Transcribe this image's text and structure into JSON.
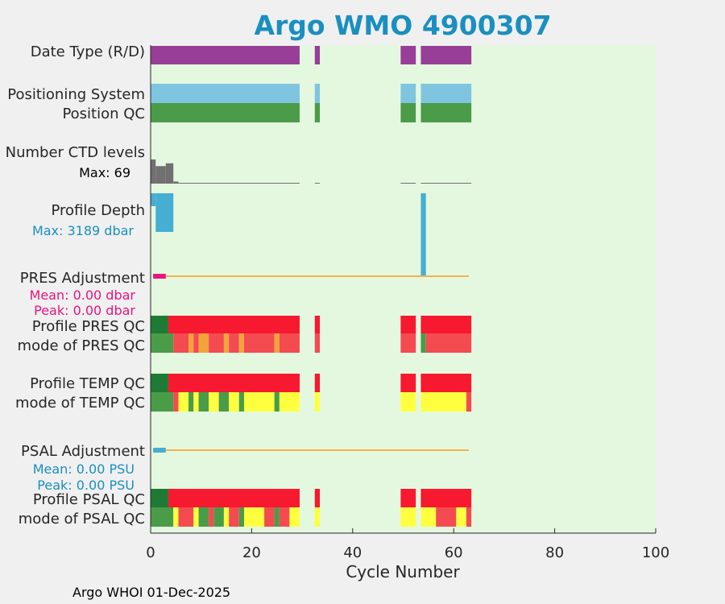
{
  "chart_data": {
    "type": "bar",
    "title": "Argo WMO 4900307",
    "xlabel": "Cycle Number",
    "xlim": [
      0,
      100
    ],
    "xticks": [
      0,
      20,
      40,
      60,
      80,
      100
    ],
    "footer": "Argo WHOI 01-Dec-2025",
    "row_labels": {
      "date_type": "Date Type (R/D)",
      "positioning_system": "Positioning System",
      "position_qc": "Position QC",
      "number_ctd_levels": "Number CTD levels",
      "profile_depth": "Profile Depth",
      "pres_adjustment": "PRES Adjustment",
      "profile_pres_qc": "Profile PRES QC",
      "mode_pres_qc": "mode of PRES QC",
      "profile_temp_qc": "Profile TEMP QC",
      "mode_temp_qc": "mode of TEMP QC",
      "psal_adjustment": "PSAL Adjustment",
      "profile_psal_qc": "Profile PSAL QC",
      "mode_psal_qc": "mode of PSAL QC"
    },
    "annotations": {
      "ctd_max": "Max: 69",
      "depth_max": "Max: 3189 dbar",
      "pres_mean": "Mean: 0.00 dbar",
      "pres_peak": "Peak: 0.00 dbar",
      "psal_mean": "Mean: 0.00 PSU",
      "psal_peak": "Peak: 0.00 PSU"
    },
    "stats": {
      "ctd_levels_max": 69,
      "profile_depth_max_dbar": 3189,
      "pres_adjustment_mean_dbar": 0.0,
      "pres_adjustment_peak_dbar": 0.0,
      "psal_adjustment_mean_psu": 0.0,
      "psal_adjustment_peak_psu": 0.0
    },
    "colors": {
      "background": "#e4f8e0",
      "date_type": "#983d98",
      "positioning": "#7fc5df",
      "qc_good": "#4a9c48",
      "qc_dark_good": "#1e7a34",
      "qc_bad": "#f6192f",
      "qc_probably_bad": "#f44b50",
      "qc_probably_good": "#ffff40",
      "qc_changed": "#f3a33c",
      "ctd": "#707070",
      "depth": "#46aed2",
      "pres_adj": "#e8157e",
      "psal_adj": "#46aed2",
      "adj_line": "#f3b34a"
    },
    "tracks": {
      "date_type": [
        {
          "from": 0,
          "to": 29.5,
          "color": "date_type"
        },
        {
          "from": 32.5,
          "to": 33.5,
          "color": "date_type"
        },
        {
          "from": 49.5,
          "to": 52.5,
          "color": "date_type"
        },
        {
          "from": 53.5,
          "to": 63.5,
          "color": "date_type"
        }
      ],
      "positioning_system": [
        {
          "from": 0,
          "to": 29.5,
          "color": "positioning"
        },
        {
          "from": 32.5,
          "to": 33.5,
          "color": "positioning"
        },
        {
          "from": 49.5,
          "to": 52.5,
          "color": "positioning"
        },
        {
          "from": 53.5,
          "to": 63.5,
          "color": "positioning"
        }
      ],
      "position_qc": [
        {
          "from": 0,
          "to": 29.5,
          "color": "qc_good"
        },
        {
          "from": 32.5,
          "to": 33.5,
          "color": "qc_good"
        },
        {
          "from": 49.5,
          "to": 52.5,
          "color": "qc_good"
        },
        {
          "from": 53.5,
          "to": 63.5,
          "color": "qc_good"
        }
      ],
      "profile_pres_qc": [
        {
          "from": 0,
          "to": 3.5,
          "color": "qc_dark_good"
        },
        {
          "from": 3.5,
          "to": 29.5,
          "color": "qc_bad"
        },
        {
          "from": 32.5,
          "to": 33.5,
          "color": "qc_bad"
        },
        {
          "from": 49.5,
          "to": 52.5,
          "color": "qc_bad"
        },
        {
          "from": 53.5,
          "to": 63.5,
          "color": "qc_bad"
        }
      ],
      "mode_pres_qc": [
        {
          "from": 0,
          "to": 4.5,
          "color": "qc_good"
        },
        {
          "from": 4.5,
          "to": 7.5,
          "color": "qc_probably_bad"
        },
        {
          "from": 7.5,
          "to": 8.5,
          "color": "qc_changed"
        },
        {
          "from": 8.5,
          "to": 9.5,
          "color": "qc_probably_bad"
        },
        {
          "from": 9.5,
          "to": 11.5,
          "color": "qc_changed"
        },
        {
          "from": 11.5,
          "to": 14.5,
          "color": "qc_probably_bad"
        },
        {
          "from": 14.5,
          "to": 15.5,
          "color": "qc_changed"
        },
        {
          "from": 15.5,
          "to": 17.5,
          "color": "qc_probably_bad"
        },
        {
          "from": 17.5,
          "to": 18.5,
          "color": "qc_changed"
        },
        {
          "from": 18.5,
          "to": 24.5,
          "color": "qc_probably_bad"
        },
        {
          "from": 24.5,
          "to": 25.5,
          "color": "qc_changed"
        },
        {
          "from": 25.5,
          "to": 29.5,
          "color": "qc_probably_bad"
        },
        {
          "from": 32.5,
          "to": 33.5,
          "color": "qc_probably_bad"
        },
        {
          "from": 49.5,
          "to": 52.5,
          "color": "qc_probably_bad"
        },
        {
          "from": 53.5,
          "to": 54.5,
          "color": "qc_good"
        },
        {
          "from": 54.5,
          "to": 63.5,
          "color": "qc_probably_bad"
        }
      ],
      "profile_temp_qc": [
        {
          "from": 0,
          "to": 3.5,
          "color": "qc_dark_good"
        },
        {
          "from": 3.5,
          "to": 29.5,
          "color": "qc_bad"
        },
        {
          "from": 32.5,
          "to": 33.5,
          "color": "qc_bad"
        },
        {
          "from": 49.5,
          "to": 52.5,
          "color": "qc_bad"
        },
        {
          "from": 53.5,
          "to": 63.5,
          "color": "qc_bad"
        }
      ],
      "mode_temp_qc": [
        {
          "from": 0,
          "to": 4.5,
          "color": "qc_good"
        },
        {
          "from": 4.5,
          "to": 5.5,
          "color": "qc_probably_bad"
        },
        {
          "from": 5.5,
          "to": 7.5,
          "color": "qc_probably_good"
        },
        {
          "from": 7.5,
          "to": 8.5,
          "color": "qc_good"
        },
        {
          "from": 8.5,
          "to": 9.5,
          "color": "qc_probably_good"
        },
        {
          "from": 9.5,
          "to": 11.5,
          "color": "qc_good"
        },
        {
          "from": 11.5,
          "to": 13.5,
          "color": "qc_probably_good"
        },
        {
          "from": 13.5,
          "to": 15.5,
          "color": "qc_good"
        },
        {
          "from": 15.5,
          "to": 17.5,
          "color": "qc_probably_good"
        },
        {
          "from": 17.5,
          "to": 18.5,
          "color": "qc_good"
        },
        {
          "from": 18.5,
          "to": 24.5,
          "color": "qc_probably_good"
        },
        {
          "from": 24.5,
          "to": 25.5,
          "color": "qc_good"
        },
        {
          "from": 25.5,
          "to": 29.5,
          "color": "qc_probably_good"
        },
        {
          "from": 32.5,
          "to": 33.5,
          "color": "qc_probably_good"
        },
        {
          "from": 49.5,
          "to": 52.5,
          "color": "qc_probably_good"
        },
        {
          "from": 53.5,
          "to": 62.5,
          "color": "qc_probably_good"
        },
        {
          "from": 62.5,
          "to": 63.5,
          "color": "qc_probably_bad"
        }
      ],
      "profile_psal_qc": [
        {
          "from": 0,
          "to": 3.5,
          "color": "qc_dark_good"
        },
        {
          "from": 3.5,
          "to": 29.5,
          "color": "qc_bad"
        },
        {
          "from": 32.5,
          "to": 33.5,
          "color": "qc_bad"
        },
        {
          "from": 49.5,
          "to": 52.5,
          "color": "qc_bad"
        },
        {
          "from": 53.5,
          "to": 63.5,
          "color": "qc_bad"
        }
      ],
      "mode_psal_qc": [
        {
          "from": 0,
          "to": 4.5,
          "color": "qc_good"
        },
        {
          "from": 4.5,
          "to": 5.5,
          "color": "qc_probably_good"
        },
        {
          "from": 5.5,
          "to": 8.5,
          "color": "qc_probably_bad"
        },
        {
          "from": 8.5,
          "to": 9.5,
          "color": "qc_probably_good"
        },
        {
          "from": 9.5,
          "to": 11.5,
          "color": "qc_good"
        },
        {
          "from": 11.5,
          "to": 12.5,
          "color": "qc_probably_bad"
        },
        {
          "from": 12.5,
          "to": 14.5,
          "color": "qc_good"
        },
        {
          "from": 14.5,
          "to": 15.5,
          "color": "qc_probably_good"
        },
        {
          "from": 15.5,
          "to": 17.5,
          "color": "qc_probably_bad"
        },
        {
          "from": 17.5,
          "to": 18.5,
          "color": "qc_good"
        },
        {
          "from": 18.5,
          "to": 22.5,
          "color": "qc_probably_good"
        },
        {
          "from": 22.5,
          "to": 24.5,
          "color": "qc_probably_bad"
        },
        {
          "from": 24.5,
          "to": 25.5,
          "color": "qc_good"
        },
        {
          "from": 25.5,
          "to": 27.5,
          "color": "qc_probably_bad"
        },
        {
          "from": 27.5,
          "to": 29.5,
          "color": "qc_probably_good"
        },
        {
          "from": 32.5,
          "to": 33.5,
          "color": "qc_probably_good"
        },
        {
          "from": 49.5,
          "to": 52.5,
          "color": "qc_probably_good"
        },
        {
          "from": 53.5,
          "to": 56.5,
          "color": "qc_probably_good"
        },
        {
          "from": 56.5,
          "to": 60.5,
          "color": "qc_probably_bad"
        },
        {
          "from": 60.5,
          "to": 62.5,
          "color": "qc_probably_good"
        },
        {
          "from": 62.5,
          "to": 63.5,
          "color": "qc_probably_bad"
        }
      ]
    },
    "ctd_levels": {
      "max": 69,
      "values": [
        {
          "from": 0,
          "to": 1,
          "value": 69
        },
        {
          "from": 1,
          "to": 3,
          "value": 50
        },
        {
          "from": 3,
          "to": 4.5,
          "value": 58
        },
        {
          "from": 4.5,
          "to": 5.5,
          "value": 6
        },
        {
          "from": 5.5,
          "to": 29.5,
          "value": 2
        },
        {
          "from": 32.5,
          "to": 33.5,
          "value": 2
        },
        {
          "from": 49.5,
          "to": 52.5,
          "value": 2
        },
        {
          "from": 53.5,
          "to": 63.5,
          "value": 2
        }
      ]
    },
    "profile_depth": {
      "max": 3189,
      "values": [
        {
          "from": 0,
          "to": 1,
          "value": 500
        },
        {
          "from": 1,
          "to": 4.5,
          "value": 1500
        },
        {
          "from": 53.5,
          "to": 54.5,
          "value": 3189
        }
      ]
    },
    "adjustments": {
      "pres": {
        "marker_from": 0.5,
        "marker_to": 3,
        "line_from": 3,
        "line_to": 63
      },
      "psal": {
        "marker_from": 0.5,
        "marker_to": 3,
        "line_from": 3,
        "line_to": 63
      }
    }
  }
}
